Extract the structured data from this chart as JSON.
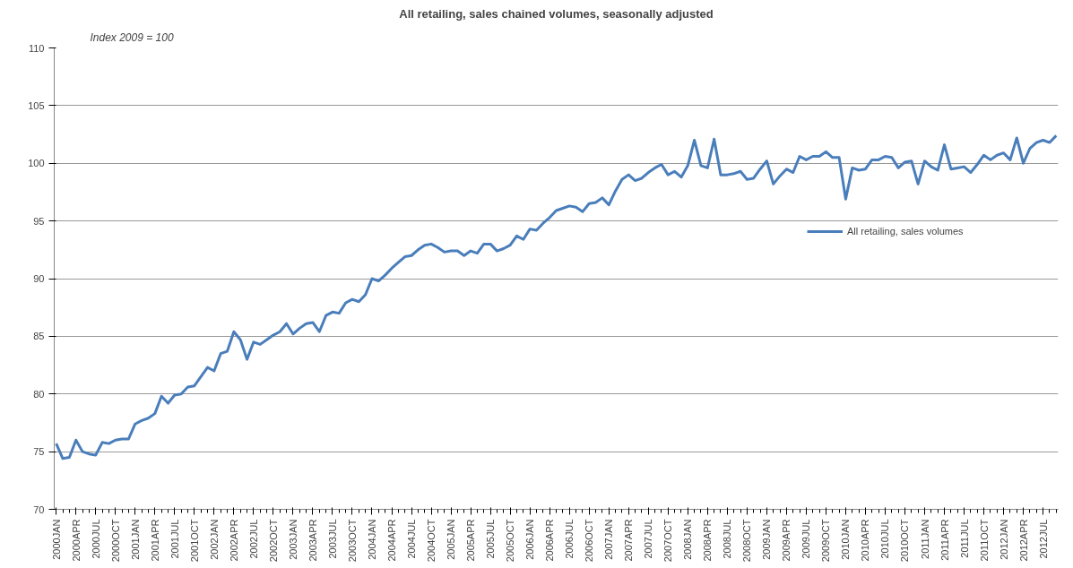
{
  "chart_data": {
    "type": "line",
    "title": "All retailing, sales chained volumes, seasonally adjusted",
    "annotations": [
      "Index 2009 = 100"
    ],
    "categories": [
      "2000JAN",
      null,
      null,
      "2000APR",
      null,
      null,
      "2000JUL",
      null,
      null,
      "2000OCT",
      null,
      null,
      "2001JAN",
      null,
      null,
      "2001APR",
      null,
      null,
      "2001JUL",
      null,
      null,
      "2001OCT",
      null,
      null,
      "2002JAN",
      null,
      null,
      "2002APR",
      null,
      null,
      "2002JUL",
      null,
      null,
      "2002OCT",
      null,
      null,
      "2003JAN",
      null,
      null,
      "2003APR",
      null,
      null,
      "2003JUL",
      null,
      null,
      "2003OCT",
      null,
      null,
      "2004JAN",
      null,
      null,
      "2004APR",
      null,
      null,
      "2004JUL",
      null,
      null,
      "2004OCT",
      null,
      null,
      "2005JAN",
      null,
      null,
      "2005APR",
      null,
      null,
      "2005JUL",
      null,
      null,
      "2005OCT",
      null,
      null,
      "2006JAN",
      null,
      null,
      "2006APR",
      null,
      null,
      "2006JUL",
      null,
      null,
      "2006OCT",
      null,
      null,
      "2007JAN",
      null,
      null,
      "2007APR",
      null,
      null,
      "2007JUL",
      null,
      null,
      "2007OCT",
      null,
      null,
      "2008JAN",
      null,
      null,
      "2008APR",
      null,
      null,
      "2008JUL",
      null,
      null,
      "2008OCT",
      null,
      null,
      "2009JAN",
      null,
      null,
      "2009APR",
      null,
      null,
      "2009JUL",
      null,
      null,
      "2009OCT",
      null,
      null,
      "2010JAN",
      null,
      null,
      "2010APR",
      null,
      null,
      "2010JUL",
      null,
      null,
      "2010OCT",
      null,
      null,
      "2011JAN",
      null,
      null,
      "2011APR",
      null,
      null,
      "2011JUL",
      null,
      null,
      "2011OCT",
      null,
      null,
      "2012JAN",
      null,
      null,
      "2012APR",
      null,
      null,
      "2012JUL",
      null,
      null
    ],
    "series": [
      {
        "name": "All retailing, sales volumes",
        "color": "#4a7ebb",
        "values": [
          75.7,
          74.4,
          74.5,
          76.0,
          75.0,
          74.8,
          74.7,
          75.8,
          75.7,
          76.0,
          76.1,
          76.1,
          77.4,
          77.7,
          77.9,
          78.3,
          79.8,
          79.2,
          79.9,
          80.0,
          80.6,
          80.7,
          81.5,
          82.3,
          82.0,
          83.5,
          83.7,
          85.4,
          84.7,
          83.0,
          84.5,
          84.3,
          84.7,
          85.1,
          85.4,
          86.1,
          85.2,
          85.7,
          86.1,
          86.2,
          85.4,
          86.8,
          87.1,
          87.0,
          87.9,
          88.2,
          88.0,
          88.6,
          90.0,
          89.8,
          90.3,
          90.9,
          91.4,
          91.9,
          92.0,
          92.5,
          92.9,
          93.0,
          92.7,
          92.3,
          92.4,
          92.4,
          92.0,
          92.4,
          92.2,
          93.0,
          93.0,
          92.4,
          92.6,
          92.9,
          93.7,
          93.4,
          94.3,
          94.2,
          94.8,
          95.3,
          95.9,
          96.1,
          96.3,
          96.2,
          95.8,
          96.5,
          96.6,
          97.0,
          96.4,
          97.6,
          98.6,
          99.0,
          98.5,
          98.7,
          99.2,
          99.6,
          99.9,
          99.0,
          99.3,
          98.8,
          99.8,
          102.0,
          99.8,
          99.6,
          102.1,
          99.0,
          99.0,
          99.1,
          99.3,
          98.6,
          98.7,
          99.5,
          100.2,
          98.2,
          98.9,
          99.5,
          99.2,
          100.6,
          100.3,
          100.6,
          100.6,
          101.0,
          100.5,
          100.5,
          96.9,
          99.6,
          99.4,
          99.5,
          100.3,
          100.3,
          100.6,
          100.5,
          99.6,
          100.1,
          100.2,
          98.2,
          100.2,
          99.7,
          99.4,
          101.6,
          99.5,
          99.6,
          99.7,
          99.2,
          99.9,
          100.7,
          100.3,
          100.7,
          100.9,
          100.3,
          102.2,
          100.0,
          101.3,
          101.8,
          102.0,
          101.8,
          102.4
        ]
      }
    ],
    "ylim": [
      70,
      110
    ],
    "yticks": [
      70,
      75,
      80,
      85,
      90,
      95,
      100,
      105,
      110
    ],
    "grid": "y",
    "legend": "right",
    "marker": "none",
    "line_style": "solid"
  }
}
